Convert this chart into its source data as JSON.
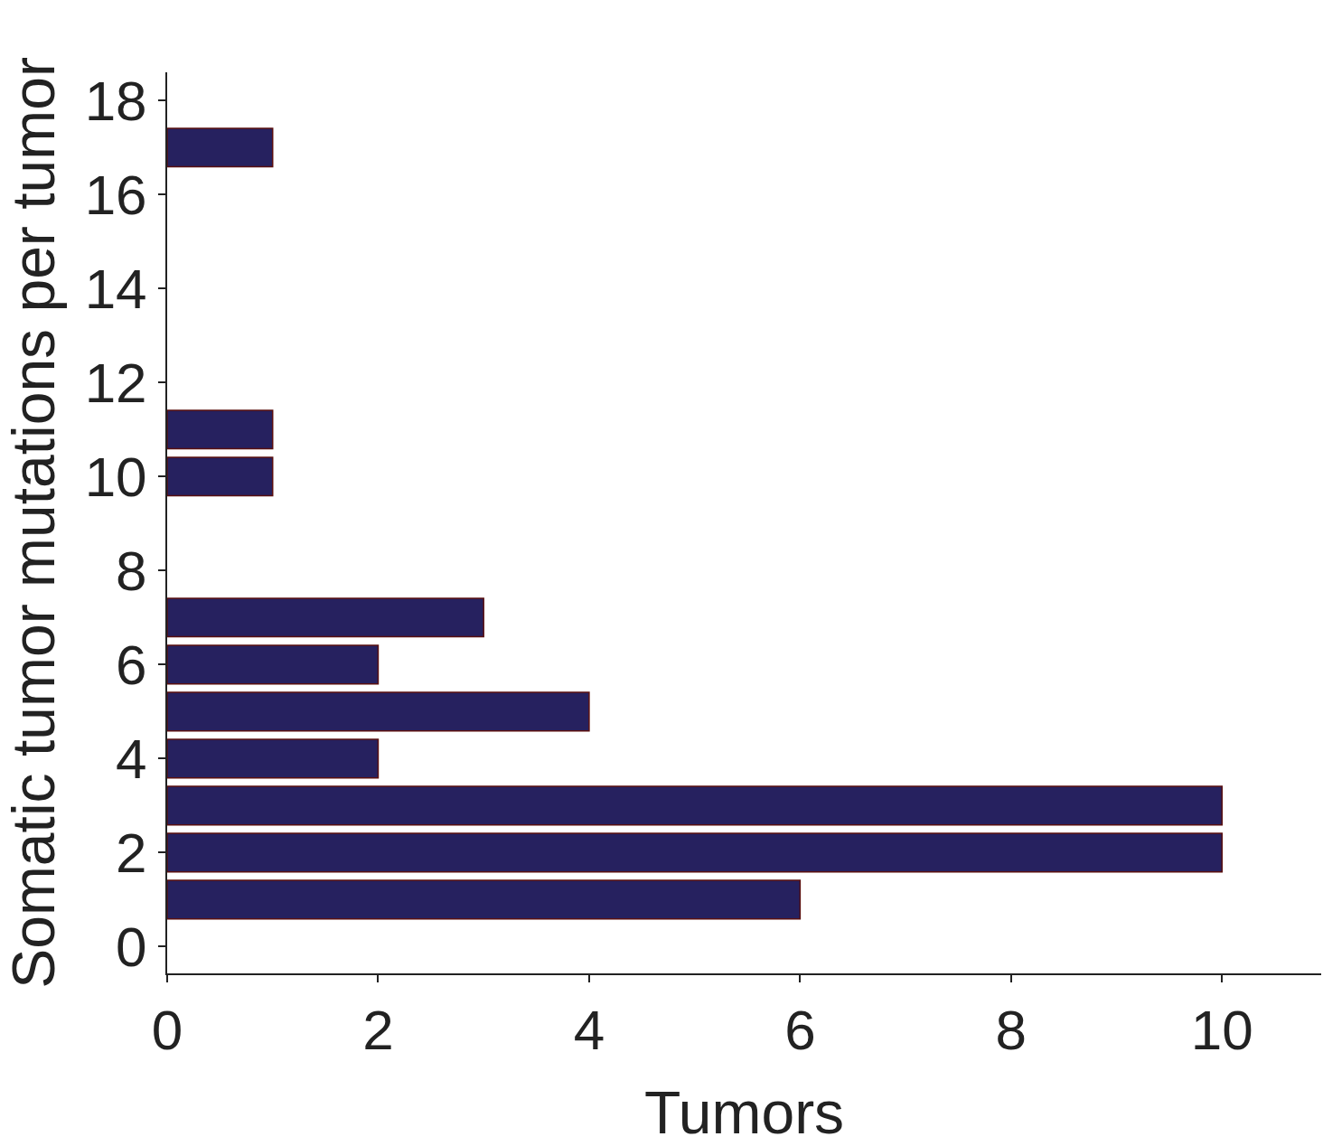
{
  "chart_data": {
    "type": "bar",
    "orientation": "horizontal",
    "xlabel": "Tumors",
    "ylabel": "Somatic tumor mutations per tumor",
    "x": [
      1,
      2,
      3,
      4,
      5,
      6,
      7,
      10,
      11,
      17
    ],
    "values": [
      6,
      10,
      10,
      2,
      4,
      2,
      3,
      1,
      1,
      1
    ],
    "color": "#26215f",
    "xlim": [
      0,
      10.94
    ],
    "xticks": [
      0,
      2,
      4,
      6,
      8,
      10
    ],
    "ylim": [
      -0.57,
      18.6
    ],
    "yticks": [
      0,
      2,
      4,
      6,
      8,
      10,
      12,
      14,
      16,
      18
    ],
    "grid": false
  }
}
